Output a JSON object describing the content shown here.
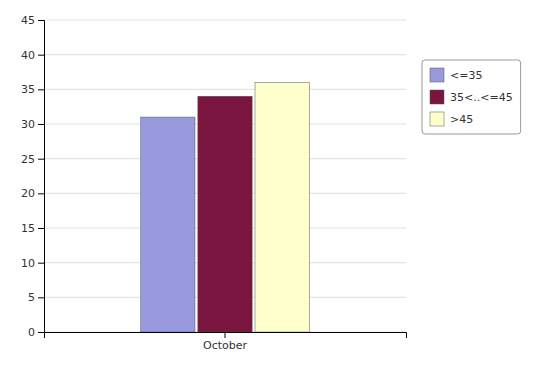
{
  "chart_data": {
    "type": "bar",
    "categories": [
      "October"
    ],
    "series": [
      {
        "name": "<=35",
        "color": "#9999dd",
        "values": [
          31
        ]
      },
      {
        "name": "35<..<=45",
        "color": "#7a1540",
        "values": [
          34
        ]
      },
      {
        "name": ">45",
        "color": "#ffffcc",
        "values": [
          36
        ]
      }
    ],
    "ylim": [
      0,
      45
    ],
    "yticks": [
      0,
      5,
      10,
      15,
      20,
      25,
      30,
      35,
      40,
      45
    ],
    "grid": true,
    "legend": "right"
  }
}
